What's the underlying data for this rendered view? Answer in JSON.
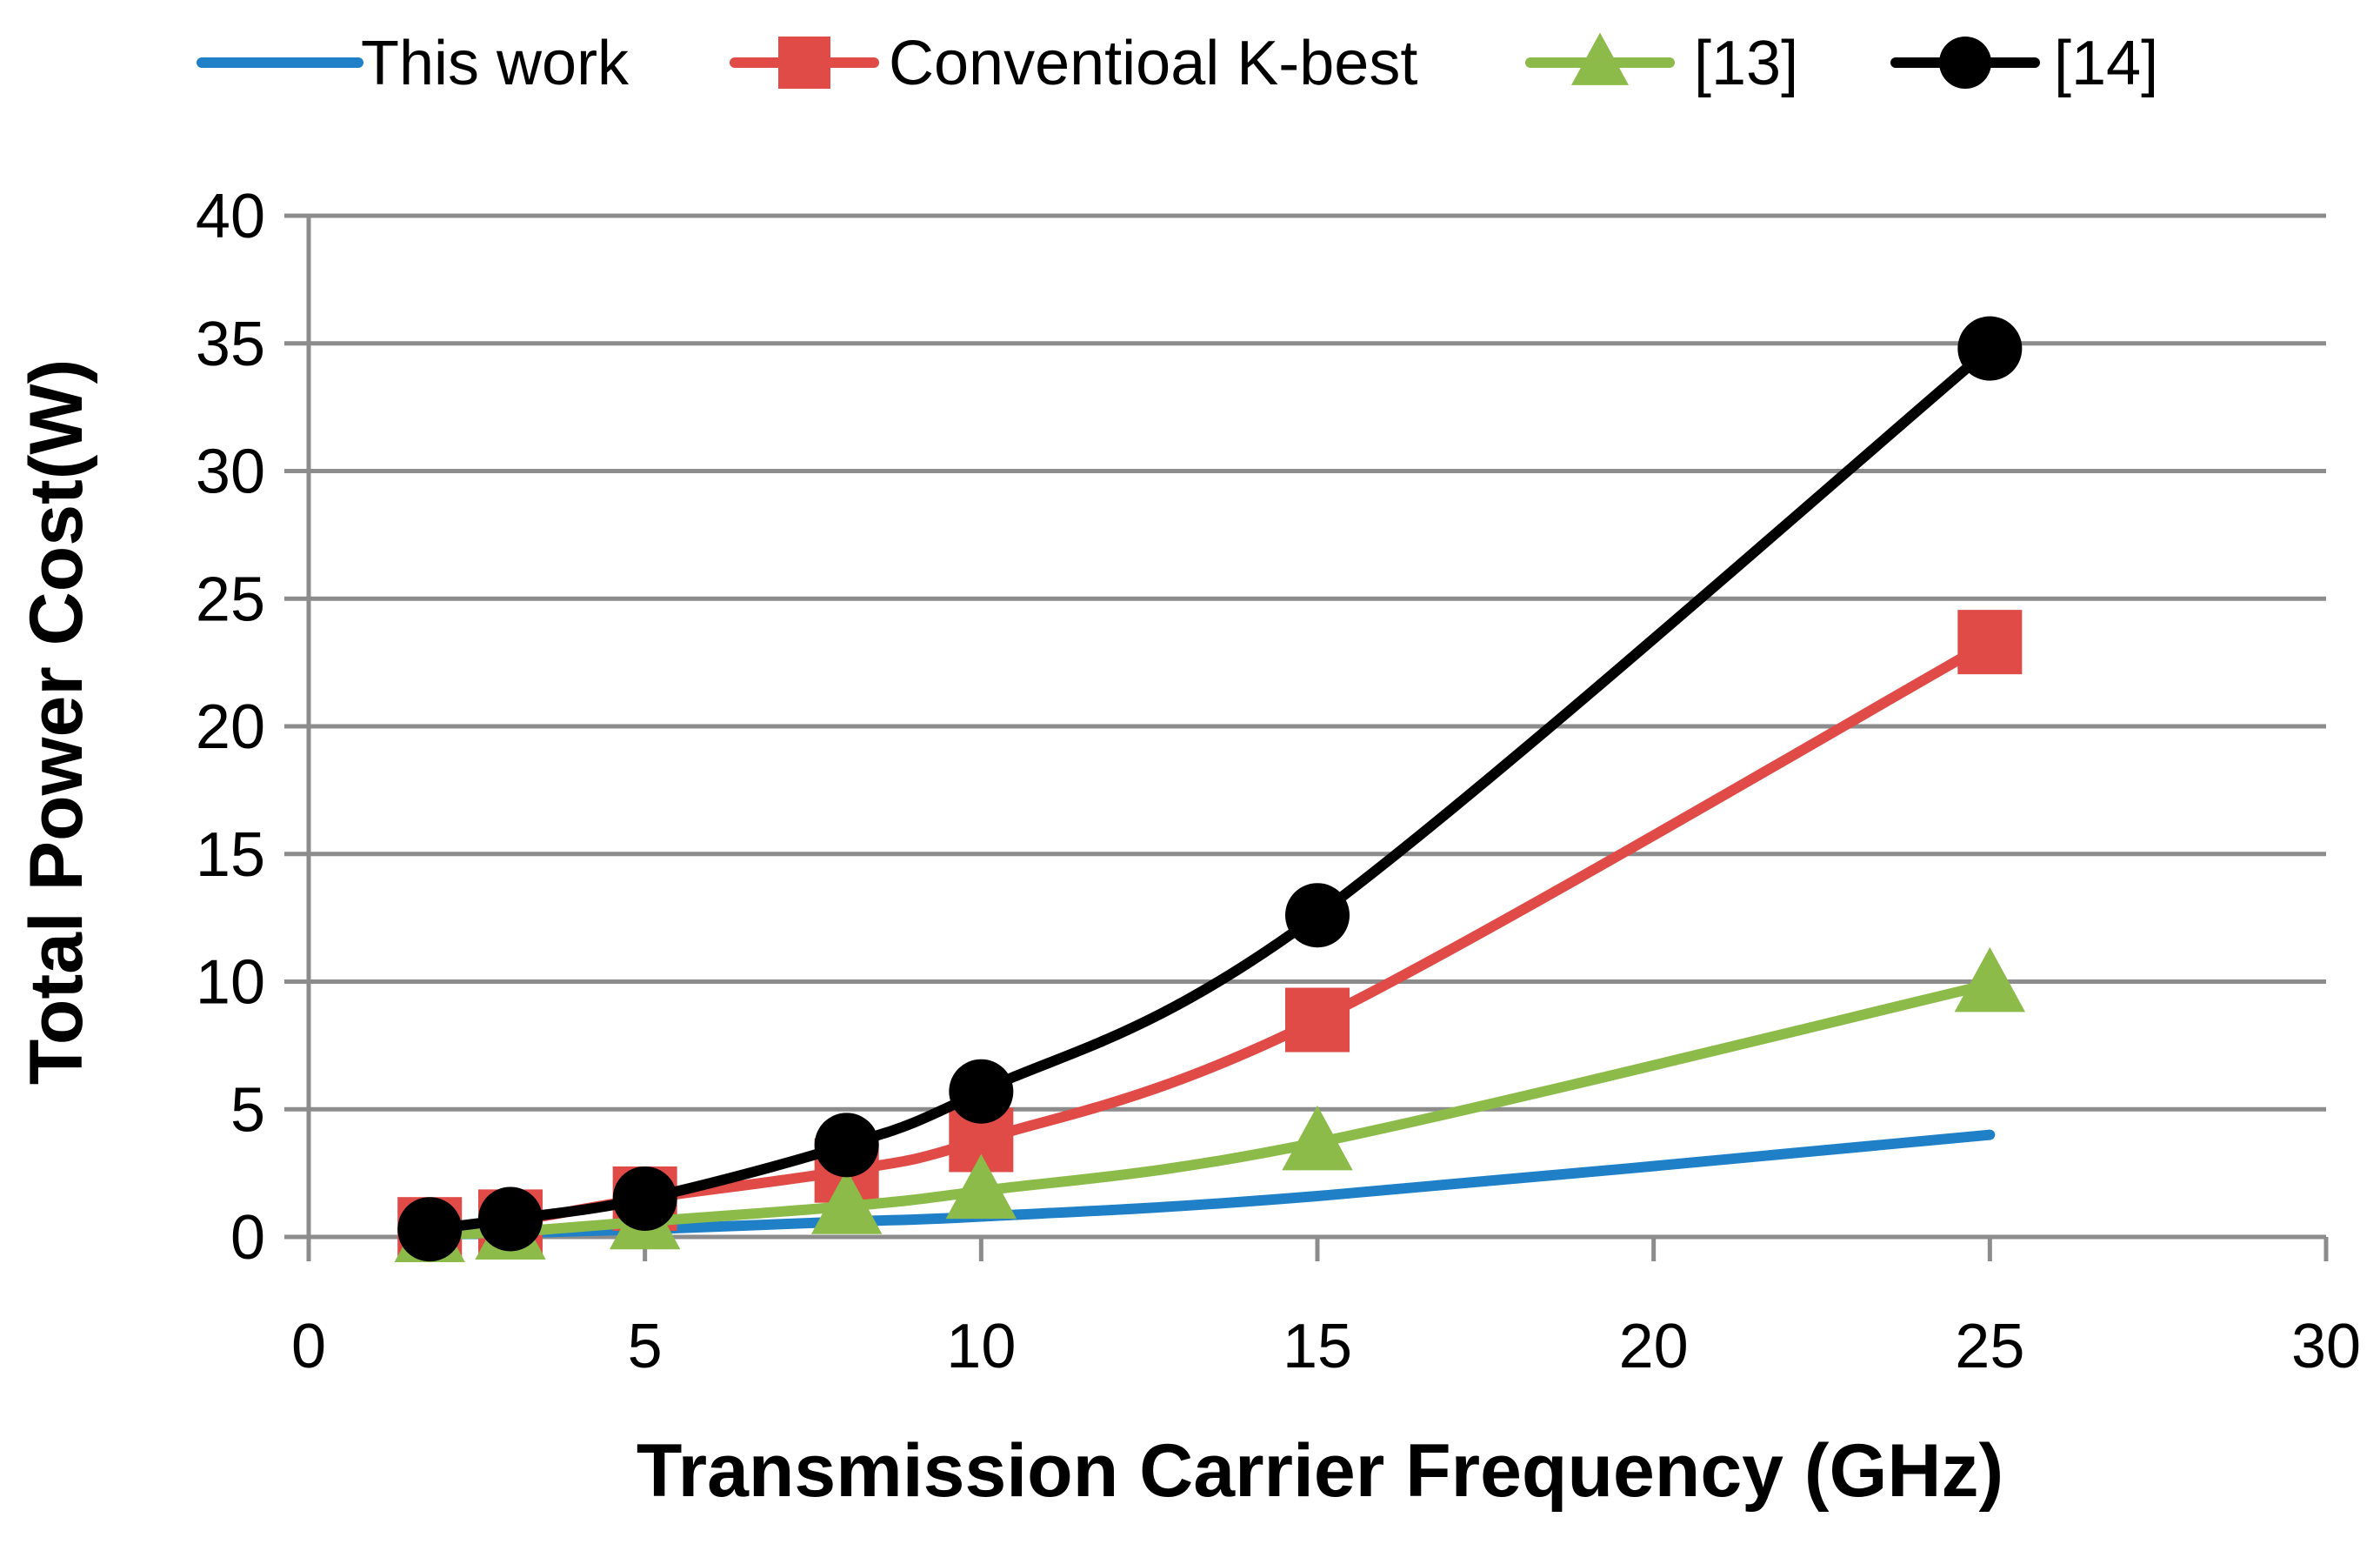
{
  "chart_data": {
    "type": "line",
    "title": "",
    "xlabel": "Transmission Carrier Frequency (GHz)",
    "ylabel": "Total Power Cost(W)",
    "xlim": [
      0,
      30
    ],
    "ylim": [
      0,
      40
    ],
    "xticks": [
      0,
      5,
      10,
      15,
      20,
      25,
      30
    ],
    "yticks": [
      0,
      5,
      10,
      15,
      20,
      25,
      30,
      35,
      40
    ],
    "xtick_labels": [
      "0",
      "5",
      "10",
      "15",
      "20",
      "25",
      "30"
    ],
    "ytick_labels": [
      "0",
      "5",
      "10",
      "15",
      "20",
      "25",
      "30",
      "35",
      "40"
    ],
    "grid": "horizontal",
    "legend_position": "top",
    "series": [
      {
        "name": "This work",
        "color": "#1f80c8",
        "marker": "none",
        "x": [
          1.8,
          3,
          5,
          8,
          10,
          15,
          25
        ],
        "y": [
          0.1,
          0.15,
          0.3,
          0.6,
          0.8,
          1.6,
          4.0
        ]
      },
      {
        "name": "Conventioal K-best",
        "color": "#e04a47",
        "marker": "square",
        "x": [
          1.8,
          3,
          5,
          8,
          10,
          15,
          25
        ],
        "y": [
          0.3,
          0.6,
          1.5,
          2.6,
          3.8,
          8.5,
          23.3
        ]
      },
      {
        "name": "[13]",
        "color": "#8cbb4a",
        "marker": "triangle",
        "x": [
          1.8,
          3,
          5,
          8,
          10,
          15,
          25
        ],
        "y": [
          0.1,
          0.2,
          0.6,
          1.2,
          1.8,
          3.7,
          9.9
        ]
      },
      {
        "name": "[14]",
        "color": "#000000",
        "marker": "circle",
        "x": [
          1.8,
          3,
          5,
          8,
          10,
          15,
          25
        ],
        "y": [
          0.3,
          0.7,
          1.5,
          3.6,
          5.7,
          12.6,
          34.8
        ]
      }
    ]
  }
}
